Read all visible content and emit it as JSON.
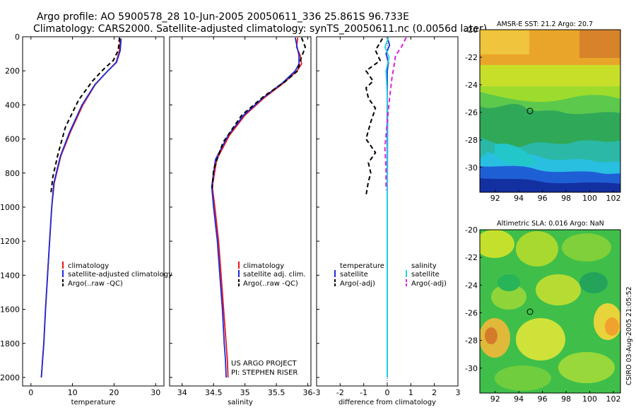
{
  "header": {
    "line1": "Argo profile: AO 5900578_28 10-Jun-2005 20050611_336 25.861S 96.733E",
    "line2": "Climatology: CARS2000. Satellite-adjusted climatology: synTS_20050611.nc (0.0056d later)"
  },
  "side_stamp": "CSIRO 03-Aug-2005 21:05:52",
  "colors": {
    "climatology": "#e8141c",
    "satellite": "#1f2bd8",
    "argo": "#000000",
    "salinity_satellite": "#22d6e0",
    "salinity_argo": "#e020d8"
  },
  "chart_data": [
    {
      "id": "temperature",
      "type": "line",
      "xlabel": "temperature",
      "ylabel": "",
      "xlim": [
        -2,
        32
      ],
      "ylim": [
        2050,
        0
      ],
      "x_ticks": [
        "0",
        "10",
        "20",
        "30"
      ],
      "x_tick_values": [
        0,
        10,
        20,
        30
      ],
      "y_ticks": [
        "0",
        "200",
        "400",
        "600",
        "800",
        "1000",
        "1200",
        "1400",
        "1600",
        "1800",
        "2000"
      ],
      "y_tick_values": [
        0,
        200,
        400,
        600,
        800,
        1000,
        1200,
        1400,
        1600,
        1800,
        2000
      ],
      "legend_position": "lower-right",
      "series": [
        {
          "name": "climatology",
          "color": "#e8141c",
          "dash": "solid",
          "x": [
            21.5,
            21.3,
            20.5,
            18.5,
            15.5,
            12.5,
            9.5,
            7.2,
            5.6,
            5.0,
            4.5,
            4.0,
            3.5,
            3.1,
            2.8,
            2.5
          ],
          "y": [
            10,
            80,
            150,
            200,
            280,
            400,
            560,
            700,
            860,
            1000,
            1200,
            1400,
            1600,
            1800,
            1900,
            2000
          ]
        },
        {
          "name": "satellite-adjusted climatology",
          "color": "#1f2bd8",
          "dash": "solid",
          "x": [
            21.7,
            21.5,
            20.6,
            18.5,
            15.4,
            12.3,
            9.3,
            7.1,
            5.5,
            5.0,
            4.5,
            4.0,
            3.5,
            3.1,
            2.8,
            2.5
          ],
          "y": [
            10,
            80,
            150,
            200,
            280,
            400,
            560,
            700,
            860,
            1000,
            1200,
            1400,
            1600,
            1800,
            1900,
            2000
          ]
        },
        {
          "name": "Argo(..raw -QC)",
          "color": "#000000",
          "dash": "dashed",
          "x": [
            21.3,
            21.0,
            19.8,
            17.5,
            14.8,
            11.5,
            8.3,
            6.5,
            5.3,
            4.8
          ],
          "y": [
            5,
            80,
            140,
            190,
            260,
            370,
            530,
            690,
            820,
            920
          ]
        }
      ]
    },
    {
      "id": "salinity",
      "type": "line",
      "xlabel": "salinity",
      "ylabel": "",
      "xlim": [
        33.8,
        36.05
      ],
      "ylim": [
        2050,
        0
      ],
      "x_ticks": [
        "34",
        "34.5",
        "35",
        "35.5",
        "36"
      ],
      "x_tick_values": [
        34,
        34.5,
        35,
        35.5,
        36
      ],
      "legend_position": "lower-right",
      "annotation_lines": [
        "US ARGO PROJECT",
        "PI: STEPHEN RISER"
      ],
      "series": [
        {
          "name": "climatology",
          "color": "#e8141c",
          "dash": "solid",
          "x": [
            35.84,
            35.82,
            35.88,
            35.9,
            35.83,
            35.62,
            35.3,
            35.0,
            34.75,
            34.55,
            34.48,
            34.52,
            34.58,
            34.62,
            34.66,
            34.7,
            34.72,
            34.73
          ],
          "y": [
            5,
            60,
            110,
            160,
            200,
            270,
            360,
            460,
            580,
            720,
            880,
            1000,
            1200,
            1400,
            1600,
            1800,
            1900,
            2000
          ]
        },
        {
          "name": "satellite adj. clim.",
          "color": "#1f2bd8",
          "dash": "solid",
          "x": [
            35.8,
            35.83,
            35.86,
            35.86,
            35.8,
            35.6,
            35.28,
            34.98,
            34.73,
            34.53,
            34.47,
            34.5,
            34.56,
            34.6,
            34.64,
            34.67,
            34.69,
            34.7
          ],
          "y": [
            5,
            60,
            110,
            160,
            200,
            270,
            360,
            460,
            580,
            720,
            880,
            1000,
            1200,
            1400,
            1600,
            1800,
            1900,
            2000
          ]
        },
        {
          "name": "Argo(..raw -QC)",
          "color": "#000000",
          "dash": "dashed",
          "x": [
            35.9,
            35.96,
            35.88,
            35.84,
            35.65,
            35.3,
            34.95,
            34.65,
            34.5,
            34.48
          ],
          "y": [
            5,
            60,
            140,
            200,
            260,
            350,
            460,
            620,
            780,
            890
          ]
        }
      ]
    },
    {
      "id": "difference",
      "type": "line",
      "xlabel": "difference from climatology",
      "ylabel": "",
      "xlim": [
        -3,
        3
      ],
      "ylim": [
        2050,
        0
      ],
      "x_ticks": [
        "-3",
        "-2",
        "-1",
        "0",
        "1",
        "2",
        "3"
      ],
      "x_tick_values": [
        -3,
        -2,
        -1,
        0,
        1,
        2,
        3
      ],
      "legend_temperature": {
        "heading": "temperature",
        "items": [
          "satellite",
          "Argo(-adj)"
        ]
      },
      "legend_salinity": {
        "heading": "salinity",
        "items": [
          "satellite",
          "Argo(-adj)"
        ]
      },
      "series": [
        {
          "name": "satellite",
          "group": "temperature",
          "color": "#1f2bd8",
          "dash": "solid",
          "x": [
            0.0,
            0.1,
            -0.05,
            0.05,
            0.0,
            0.0,
            0.0,
            0.0
          ],
          "y": [
            5,
            50,
            100,
            150,
            200,
            400,
            1000,
            2000
          ]
        },
        {
          "name": "Argo(-adj)",
          "group": "temperature",
          "color": "#000000",
          "dash": "dashed",
          "x": [
            -0.2,
            -0.5,
            -0.3,
            -0.9,
            -0.6,
            -0.9,
            -0.8,
            -0.5,
            -0.7,
            -0.9,
            -0.5,
            -0.8,
            -0.7,
            -0.8,
            -0.9
          ],
          "y": [
            10,
            80,
            140,
            200,
            260,
            300,
            360,
            420,
            500,
            600,
            680,
            740,
            800,
            850,
            930
          ]
        },
        {
          "name": "satellite",
          "group": "salinity",
          "color": "#22d6e0",
          "dash": "solid",
          "x": [
            0.05,
            -0.1,
            0.08,
            -0.05,
            0.0,
            0.02,
            0.0,
            0.0
          ],
          "y": [
            5,
            60,
            120,
            200,
            350,
            500,
            1000,
            2000
          ]
        },
        {
          "name": "Argo(-adj)",
          "group": "salinity",
          "color": "#e020d8",
          "dash": "dashed",
          "x": [
            0.8,
            0.6,
            0.35,
            0.3,
            0.2,
            0.1,
            0.0,
            -0.1,
            -0.05,
            -0.05
          ],
          "y": [
            5,
            60,
            110,
            160,
            240,
            360,
            500,
            650,
            780,
            900
          ]
        }
      ]
    },
    {
      "id": "sst_map",
      "type": "heatmap",
      "title": "AMSR-E SST: 21.2 Argo: 20.7",
      "x_ticks": [
        "92",
        "94",
        "96",
        "98",
        "100",
        "102"
      ],
      "x_tick_values": [
        92,
        94,
        96,
        98,
        100,
        102
      ],
      "xlim": [
        90.7,
        102.6
      ],
      "y_ticks": [
        "-20",
        "-22",
        "-24",
        "-26",
        "-28",
        "-30"
      ],
      "y_tick_values": [
        -20,
        -22,
        -24,
        -26,
        -28,
        -30
      ],
      "ylim": [
        -31.8,
        -20
      ],
      "marker": {
        "lon": 96.733,
        "lat": -25.861
      }
    },
    {
      "id": "sla_map",
      "type": "heatmap",
      "title": "Altimetric SLA: 0.016 Argo: NaN",
      "x_ticks": [
        "92",
        "94",
        "96",
        "98",
        "100",
        "102"
      ],
      "x_tick_values": [
        92,
        94,
        96,
        98,
        100,
        102
      ],
      "xlim": [
        90.7,
        102.6
      ],
      "y_ticks": [
        "-20",
        "-22",
        "-24",
        "-26",
        "-28",
        "-30"
      ],
      "y_tick_values": [
        -20,
        -22,
        -24,
        -26,
        -28,
        -30
      ],
      "ylim": [
        -31.8,
        -20
      ],
      "marker": {
        "lon": 96.733,
        "lat": -25.861
      }
    }
  ]
}
